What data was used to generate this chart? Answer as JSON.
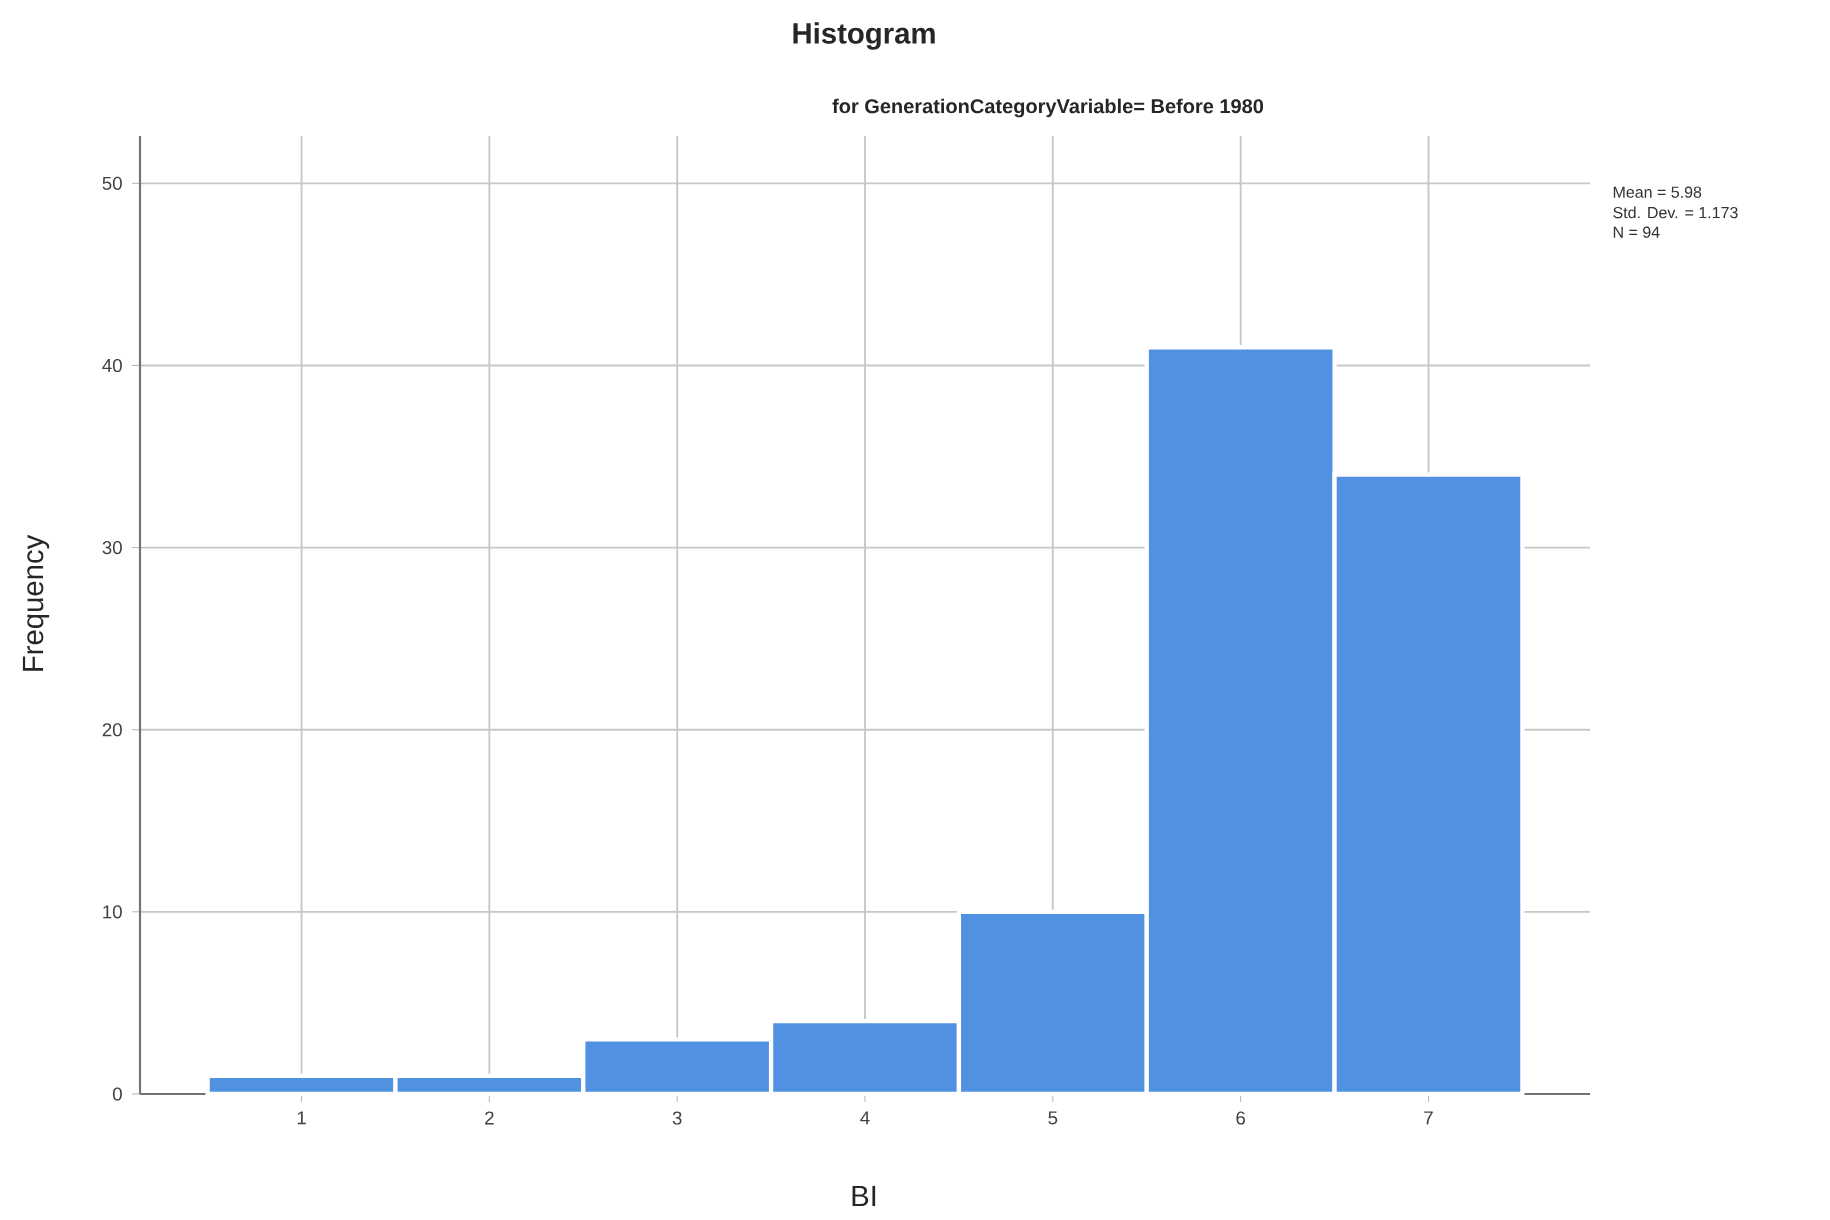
{
  "chart_data": {
    "type": "histogram",
    "title": "Histogram",
    "subtitle": "for GenerationCategoryVariable= Before 1980",
    "xlabel": "BI",
    "ylabel": "Frequency",
    "bins": [
      0.5,
      1.5,
      2.5,
      3.5,
      4.5,
      5.5,
      6.5,
      7.5
    ],
    "values": [
      1,
      1,
      3,
      4,
      10,
      41,
      34
    ],
    "color": "#5191e2",
    "xlim": [
      0.14,
      7.86
    ],
    "ylim": [
      0,
      52.6
    ],
    "xticks": [
      1,
      2,
      3,
      4,
      5,
      6,
      7
    ],
    "yticks": [
      0,
      10,
      20,
      30,
      40,
      50
    ],
    "grid": true,
    "annotations": [
      "Mean = 5.98",
      "Std. Dev. = 1.173",
      "N = 94"
    ]
  }
}
